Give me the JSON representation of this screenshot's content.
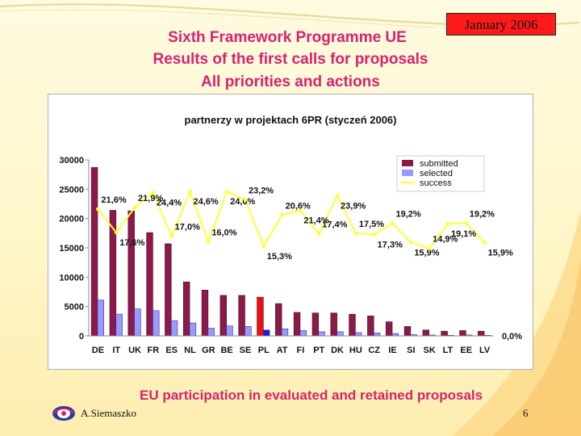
{
  "slide": {
    "date": "January 2006",
    "title_line1": "Sixth Framework Programme UE",
    "title_line2": "Results of the first calls for proposals",
    "title_line3": "All priorities and actions",
    "caption": "EU participation in evaluated and retained proposals",
    "author": "A.Siemaszko",
    "page_number": "6"
  },
  "colors": {
    "title": "#d8226f",
    "date_box": "#ff1a1a",
    "submitted": "#8b1a4a",
    "selected": "#9999ff",
    "success": "#ffff33",
    "highlight_submitted": "#ee1111",
    "highlight_selected": "#1a1acc"
  },
  "chart_data": {
    "type": "bar",
    "title": "partnerzy w projektach 6PR (styczeń 2006)",
    "categories": [
      "DE",
      "IT",
      "UK",
      "FR",
      "ES",
      "NL",
      "GR",
      "BE",
      "SE",
      "PL",
      "AT",
      "FI",
      "PT",
      "DK",
      "HU",
      "CZ",
      "IE",
      "SI",
      "SK",
      "LT",
      "EE",
      "LV"
    ],
    "highlight_category": "PL",
    "series": [
      {
        "name": "submitted",
        "kind": "bar",
        "axis": "left",
        "values": [
          28700,
          21400,
          21300,
          17600,
          15700,
          9200,
          7800,
          6900,
          6900,
          6600,
          5500,
          4000,
          3900,
          3900,
          3700,
          3400,
          2400,
          1600,
          1000,
          800,
          900,
          800
        ]
      },
      {
        "name": "selected",
        "kind": "bar",
        "axis": "left",
        "values": [
          6100,
          3700,
          4600,
          4300,
          2600,
          2200,
          1300,
          1700,
          1600,
          1000,
          1200,
          900,
          700,
          700,
          550,
          500,
          400,
          200,
          150,
          100,
          150,
          100
        ]
      },
      {
        "name": "success",
        "kind": "line",
        "axis": "right",
        "values": [
          21.6,
          17.6,
          21.9,
          24.4,
          17.0,
          24.6,
          16.0,
          24.6,
          23.2,
          15.3,
          20.6,
          21.4,
          17.4,
          23.9,
          17.5,
          17.3,
          19.2,
          15.9,
          14.9,
          19.1,
          19.2,
          15.9
        ],
        "labels": [
          "21,6%",
          "17,6%",
          "21,9%",
          "24,4%",
          "17,0%",
          "24,6%",
          "16,0%",
          "24,6%",
          "23,2%",
          "15,3%",
          "20,6%",
          "21,4%",
          "17,4%",
          "23,9%",
          "17,5%",
          "17,3%",
          "19,2%",
          "15,9%",
          "14,9%",
          "19,1%",
          "19,2%",
          "15,9%"
        ]
      }
    ],
    "y_left": {
      "min": 0,
      "max": 30000,
      "ticks": [
        "0",
        "5000",
        "10000",
        "15000",
        "20000",
        "25000",
        "30000"
      ]
    },
    "y_right": {
      "min": 0,
      "max": 30,
      "visible_ticks": [
        "0,0%"
      ]
    },
    "legend_position": "top-right",
    "grid": false
  }
}
